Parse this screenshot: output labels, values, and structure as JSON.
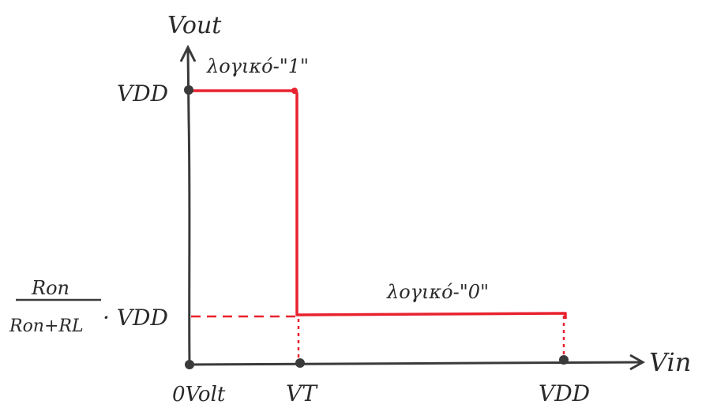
{
  "axes": {
    "y_label": "Vout",
    "x_label": "Vin"
  },
  "levels": {
    "high_label": "VDD",
    "low_fraction_numerator": "Ron",
    "low_fraction_denominator": "Ron+RL",
    "low_suffix": "· VDD"
  },
  "x_ticks": {
    "origin": "0Volt",
    "threshold": "VT",
    "supply": "VDD"
  },
  "annotations": {
    "logic_one": "λογικό-\"1\"",
    "logic_zero": "λογικό-\"0\""
  },
  "colors": {
    "curve": "#e8222e",
    "axes": "#3a3a3a"
  }
}
